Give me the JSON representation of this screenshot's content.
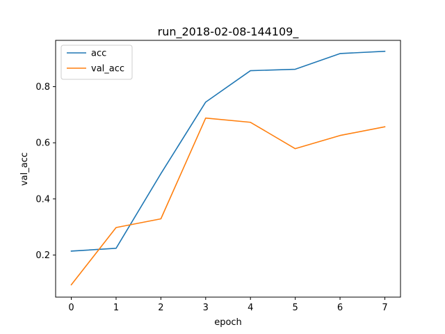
{
  "chart_data": {
    "type": "line",
    "title": "run_2018-02-08-144109_",
    "xlabel": "epoch",
    "ylabel": "val_acc",
    "x": [
      0,
      1,
      2,
      3,
      4,
      5,
      6,
      7
    ],
    "xlim": [
      -0.35,
      7.35
    ],
    "ylim": [
      0.05,
      0.965
    ],
    "xticks": [
      0,
      1,
      2,
      3,
      4,
      5,
      6,
      7
    ],
    "yticks": [
      0.2,
      0.4,
      0.6,
      0.8
    ],
    "ytick_labels": [
      "0.2",
      "0.4",
      "0.6",
      "0.8"
    ],
    "grid": false,
    "legend": "top-left",
    "series": [
      {
        "name": "acc",
        "color": "#1f77b4",
        "values": [
          0.214,
          0.224,
          0.49,
          0.745,
          0.857,
          0.862,
          0.918,
          0.926
        ]
      },
      {
        "name": "val_acc",
        "color": "#ff7f0e",
        "values": [
          0.094,
          0.298,
          0.329,
          0.688,
          0.673,
          0.579,
          0.626,
          0.657
        ]
      }
    ]
  }
}
